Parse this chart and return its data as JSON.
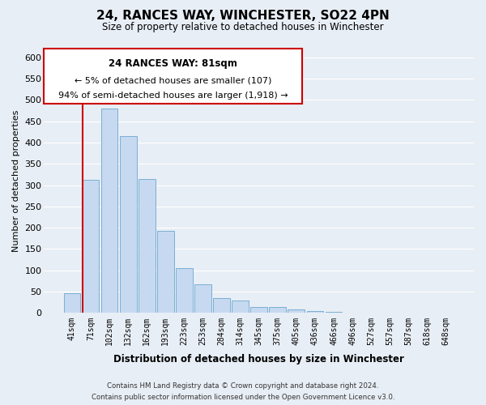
{
  "title": "24, RANCES WAY, WINCHESTER, SO22 4PN",
  "subtitle": "Size of property relative to detached houses in Winchester",
  "xlabel": "Distribution of detached houses by size in Winchester",
  "ylabel": "Number of detached properties",
  "bar_labels": [
    "41sqm",
    "71sqm",
    "102sqm",
    "132sqm",
    "162sqm",
    "193sqm",
    "223sqm",
    "253sqm",
    "284sqm",
    "314sqm",
    "345sqm",
    "375sqm",
    "405sqm",
    "436sqm",
    "466sqm",
    "496sqm",
    "527sqm",
    "557sqm",
    "587sqm",
    "618sqm",
    "648sqm"
  ],
  "bar_values": [
    47,
    312,
    480,
    415,
    315,
    192,
    105,
    68,
    35,
    30,
    14,
    15,
    8,
    4,
    2,
    1,
    0,
    0,
    0,
    0,
    0
  ],
  "bar_color": "#c6d9f0",
  "bar_edge_color": "#7aafd4",
  "vline_color": "#cc0000",
  "ylim": [
    0,
    620
  ],
  "yticks": [
    0,
    50,
    100,
    150,
    200,
    250,
    300,
    350,
    400,
    450,
    500,
    550,
    600
  ],
  "annotation_title": "24 RANCES WAY: 81sqm",
  "annotation_line1": "← 5% of detached houses are smaller (107)",
  "annotation_line2": "94% of semi-detached houses are larger (1,918) →",
  "annotation_box_color": "#ffffff",
  "annotation_box_edge": "#cc0000",
  "footer_line1": "Contains HM Land Registry data © Crown copyright and database right 2024.",
  "footer_line2": "Contains public sector information licensed under the Open Government Licence v3.0.",
  "background_color": "#e8eef5",
  "plot_bg_color": "#e8eef5",
  "grid_color": "#ffffff"
}
